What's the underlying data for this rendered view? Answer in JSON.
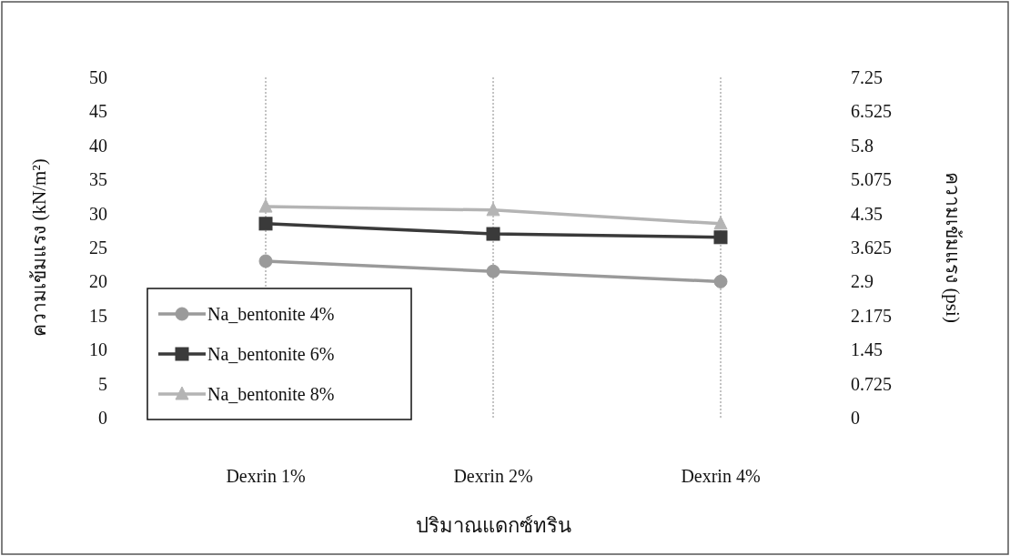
{
  "chart_data": {
    "type": "line",
    "categories": [
      "Dexrin 1%",
      "Dexrin 2%",
      "Dexrin 4%"
    ],
    "xlabel": "ปริมาณแดกซ์ทริน",
    "ylabel": "ความเข้มแรง (kN/m²)",
    "y2label": "ความเข้มแรง (psi)",
    "ylim": [
      0,
      50
    ],
    "yticks": [
      0,
      5,
      10,
      15,
      20,
      25,
      30,
      35,
      40,
      45,
      50
    ],
    "y2lim": [
      0,
      7.25
    ],
    "y2ticks": [
      0,
      0.725,
      1.45,
      2.175,
      2.9,
      3.625,
      4.35,
      5.075,
      5.8,
      6.525,
      7.25
    ],
    "grid": "x",
    "legend": "bottom left",
    "line_style": "solid",
    "series": [
      {
        "name": "Na_bentonite 4%",
        "color": "#9a9a9a",
        "marker": "circle",
        "values": [
          23,
          21.5,
          20
        ]
      },
      {
        "name": "Na_bentonite 6%",
        "color": "#3a3a3a",
        "marker": "square",
        "values": [
          28.5,
          27,
          26.5
        ]
      },
      {
        "name": "Na_bentonite 8%",
        "color": "#b4b4b4",
        "marker": "triangle",
        "values": [
          31,
          30.5,
          28.5
        ]
      }
    ]
  }
}
